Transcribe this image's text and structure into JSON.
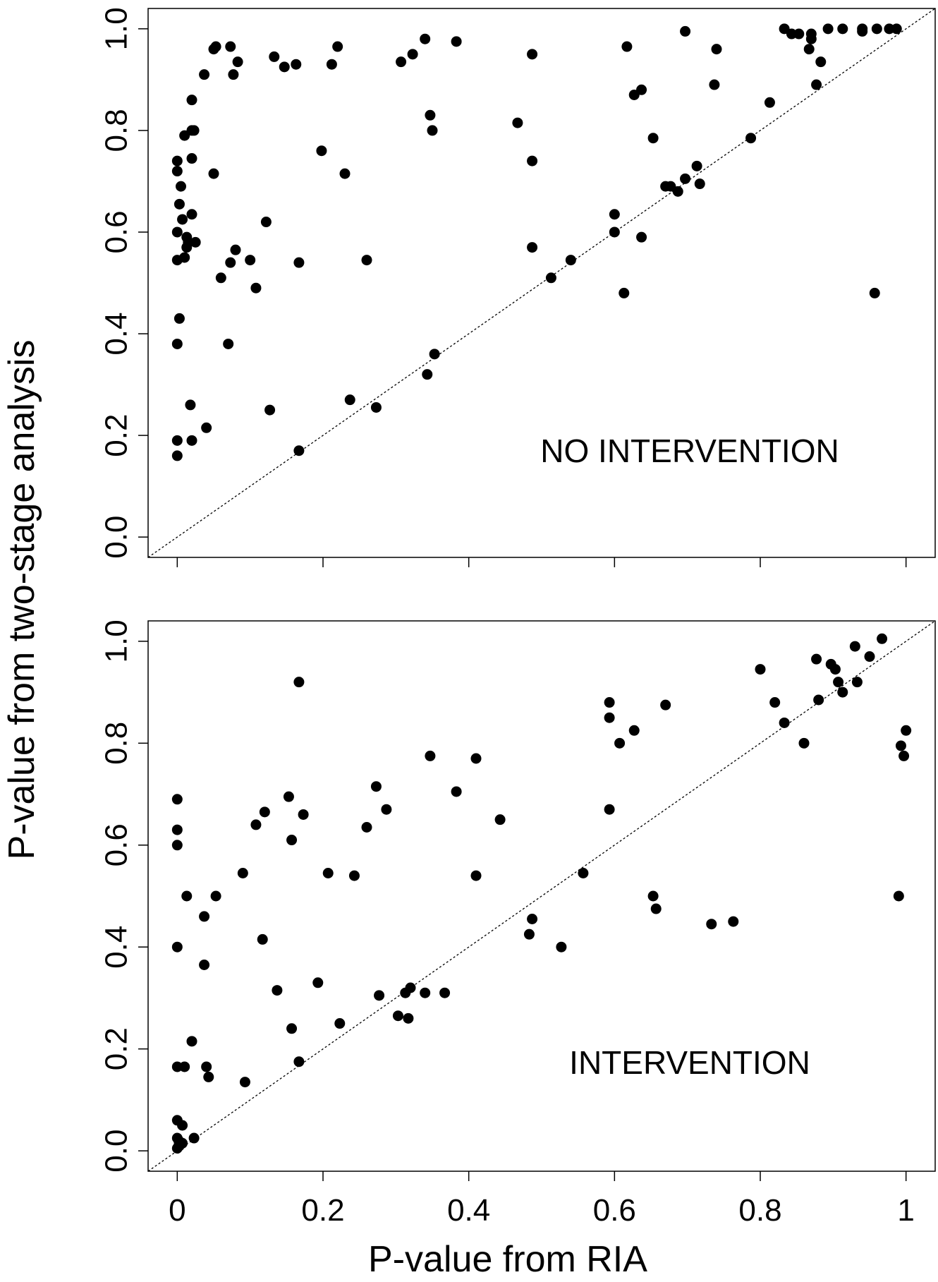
{
  "ylabel": "P-value from two-stage analysis",
  "xlabel": "P-value from RIA",
  "tick_labels": [
    "0",
    "0.2",
    "0.4",
    "0.6",
    "0.8",
    "1"
  ],
  "ytick_labels": [
    "0.0",
    "0.2",
    "0.4",
    "0.6",
    "0.8",
    "1.0"
  ],
  "chart_data": [
    {
      "type": "scatter",
      "panel": "top",
      "annotation": "NO INTERVENTION",
      "xlabel": "",
      "ylabel": "P-value from two-stage analysis",
      "xlim": [
        -0.04,
        1.04
      ],
      "ylim": [
        -0.04,
        1.04
      ],
      "reference_line": "y = x (dotted)",
      "grid": false,
      "x": [
        0.0,
        0.0,
        0.0,
        0.0,
        0.0,
        0.0,
        0.0,
        0.003,
        0.003,
        0.005,
        0.007,
        0.01,
        0.01,
        0.013,
        0.013,
        0.015,
        0.018,
        0.02,
        0.02,
        0.02,
        0.02,
        0.02,
        0.023,
        0.025,
        0.037,
        0.04,
        0.05,
        0.05,
        0.053,
        0.06,
        0.07,
        0.073,
        0.073,
        0.077,
        0.08,
        0.083,
        0.1,
        0.108,
        0.122,
        0.127,
        0.133,
        0.147,
        0.163,
        0.167,
        0.167,
        0.198,
        0.212,
        0.22,
        0.23,
        0.237,
        0.26,
        0.273,
        0.307,
        0.323,
        0.34,
        0.343,
        0.347,
        0.35,
        0.353,
        0.383,
        0.467,
        0.487,
        0.487,
        0.487,
        0.513,
        0.54,
        0.6,
        0.6,
        0.613,
        0.617,
        0.627,
        0.637,
        0.637,
        0.653,
        0.67,
        0.677,
        0.687,
        0.697,
        0.697,
        0.713,
        0.717,
        0.737,
        0.74,
        0.787,
        0.813,
        0.833,
        0.843,
        0.853,
        0.867,
        0.87,
        0.87,
        0.877,
        0.883,
        0.893,
        0.913,
        0.94,
        0.94,
        0.957,
        0.96,
        0.977,
        0.987
      ],
      "y": [
        0.16,
        0.38,
        0.545,
        0.6,
        0.72,
        0.74,
        0.19,
        0.655,
        0.43,
        0.69,
        0.625,
        0.55,
        0.79,
        0.59,
        0.57,
        0.58,
        0.26,
        0.635,
        0.745,
        0.8,
        0.86,
        0.19,
        0.8,
        0.58,
        0.91,
        0.215,
        0.715,
        0.96,
        0.965,
        0.51,
        0.38,
        0.965,
        0.54,
        0.91,
        0.565,
        0.935,
        0.545,
        0.49,
        0.62,
        0.25,
        0.945,
        0.925,
        0.93,
        0.54,
        0.17,
        0.76,
        0.93,
        0.965,
        0.715,
        0.27,
        0.545,
        0.255,
        0.935,
        0.95,
        0.98,
        0.32,
        0.83,
        0.8,
        0.36,
        0.975,
        0.815,
        0.95,
        0.57,
        0.74,
        0.51,
        0.545,
        0.6,
        0.635,
        0.48,
        0.965,
        0.87,
        0.88,
        0.59,
        0.785,
        0.69,
        0.69,
        0.68,
        0.705,
        0.995,
        0.73,
        0.695,
        0.89,
        0.96,
        0.785,
        0.855,
        1.0,
        0.99,
        0.99,
        0.96,
        0.98,
        0.99,
        0.89,
        0.935,
        1.0,
        1.0,
        1.0,
        0.995,
        0.48,
        1.0,
        1.0,
        1.0
      ]
    },
    {
      "type": "scatter",
      "panel": "bottom",
      "annotation": "INTERVENTION",
      "xlabel": "P-value from RIA",
      "ylabel": "P-value from two-stage analysis",
      "xlim": [
        -0.04,
        1.04
      ],
      "ylim": [
        -0.04,
        1.04
      ],
      "reference_line": "y = x (dotted)",
      "grid": false,
      "x": [
        0.0,
        0.0,
        0.0,
        0.0,
        0.0,
        0.0,
        0.0,
        0.0,
        0.002,
        0.002,
        0.003,
        0.007,
        0.007,
        0.01,
        0.013,
        0.02,
        0.023,
        0.037,
        0.037,
        0.04,
        0.043,
        0.053,
        0.09,
        0.093,
        0.108,
        0.117,
        0.12,
        0.137,
        0.153,
        0.157,
        0.157,
        0.167,
        0.167,
        0.173,
        0.193,
        0.207,
        0.223,
        0.243,
        0.26,
        0.273,
        0.277,
        0.287,
        0.303,
        0.313,
        0.317,
        0.32,
        0.34,
        0.347,
        0.367,
        0.383,
        0.41,
        0.41,
        0.443,
        0.483,
        0.487,
        0.527,
        0.557,
        0.593,
        0.593,
        0.593,
        0.607,
        0.627,
        0.653,
        0.657,
        0.67,
        0.733,
        0.763,
        0.8,
        0.82,
        0.833,
        0.86,
        0.877,
        0.88,
        0.897,
        0.903,
        0.907,
        0.913,
        0.93,
        0.933,
        0.95,
        0.967,
        0.99,
        0.993,
        0.997,
        1.0
      ],
      "y": [
        0.69,
        0.63,
        0.6,
        0.4,
        0.165,
        0.06,
        0.025,
        0.005,
        0.02,
        0.01,
        0.01,
        0.05,
        0.015,
        0.165,
        0.5,
        0.215,
        0.025,
        0.46,
        0.365,
        0.165,
        0.145,
        0.5,
        0.545,
        0.135,
        0.64,
        0.415,
        0.665,
        0.315,
        0.695,
        0.61,
        0.24,
        0.92,
        0.175,
        0.66,
        0.33,
        0.545,
        0.25,
        0.54,
        0.635,
        0.715,
        0.305,
        0.67,
        0.265,
        0.31,
        0.26,
        0.32,
        0.31,
        0.775,
        0.31,
        0.705,
        0.77,
        0.54,
        0.65,
        0.425,
        0.455,
        0.4,
        0.545,
        0.88,
        0.85,
        0.67,
        0.8,
        0.825,
        0.5,
        0.475,
        0.875,
        0.445,
        0.45,
        0.945,
        0.88,
        0.84,
        0.8,
        0.965,
        0.885,
        0.955,
        0.945,
        0.92,
        0.9,
        0.99,
        0.92,
        0.97,
        1.005,
        0.5,
        0.795,
        0.775,
        0.825
      ]
    }
  ]
}
